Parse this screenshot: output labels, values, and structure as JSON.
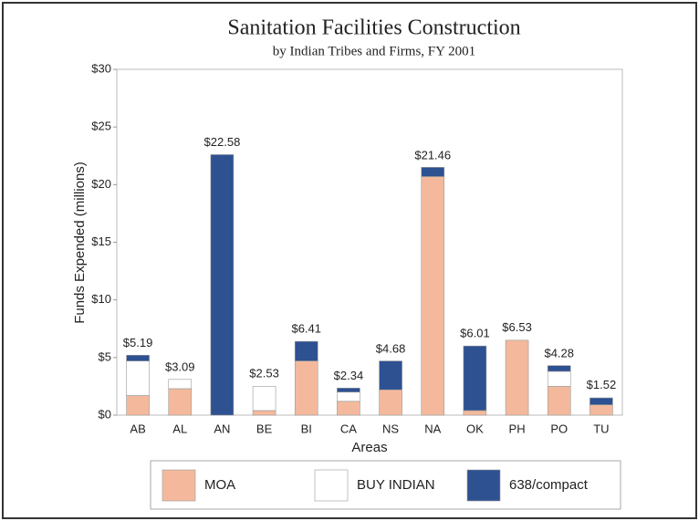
{
  "chart_data": {
    "type": "stacked_bar",
    "title": "Sanitation Facilities Construction",
    "subtitle": "by Indian Tribes and Firms, FY 2001",
    "x_label": "Areas",
    "y_label": "Funds Expended (millions)",
    "categories": [
      "AB",
      "AL",
      "AN",
      "BE",
      "BI",
      "CA",
      "NS",
      "NA",
      "OK",
      "PH",
      "PO",
      "TU"
    ],
    "series": [
      {
        "name": "MOA",
        "color": "#f4b99c",
        "values": [
          1.7,
          2.3,
          0,
          0.4,
          4.7,
          1.2,
          2.2,
          20.7,
          0.4,
          6.5,
          2.5,
          0.9
        ]
      },
      {
        "name": "BUY INDIAN",
        "color": "#ffffff",
        "values": [
          3.0,
          0.8,
          0,
          2.1,
          0,
          0.8,
          0,
          0,
          0,
          0,
          1.3,
          0
        ]
      },
      {
        "name": "638/compact",
        "color": "#2d5191",
        "values": [
          0.5,
          0,
          22.6,
          0,
          1.7,
          0.35,
          2.5,
          0.8,
          5.6,
          0,
          0.5,
          0.6
        ]
      }
    ],
    "totals": [
      5.19,
      3.09,
      22.58,
      2.53,
      6.41,
      2.34,
      4.68,
      21.46,
      6.01,
      6.53,
      4.28,
      1.52
    ],
    "total_labels": [
      "$5.19",
      "$3.09",
      "$22.58",
      "$2.53",
      "$6.41",
      "$2.34",
      "$4.68",
      "$21.46",
      "$6.01",
      "$6.53",
      "$4.28",
      "$1.52"
    ],
    "ylim": [
      0,
      30
    ],
    "yticks": [
      {
        "value": 0,
        "label": "$0"
      },
      {
        "value": 5,
        "label": "$5"
      },
      {
        "value": 10,
        "label": "$10"
      },
      {
        "value": 15,
        "label": "$15"
      },
      {
        "value": 20,
        "label": "$20"
      },
      {
        "value": 25,
        "label": "$25"
      },
      {
        "value": 30,
        "label": "$30"
      }
    ],
    "legend": "bottom"
  }
}
